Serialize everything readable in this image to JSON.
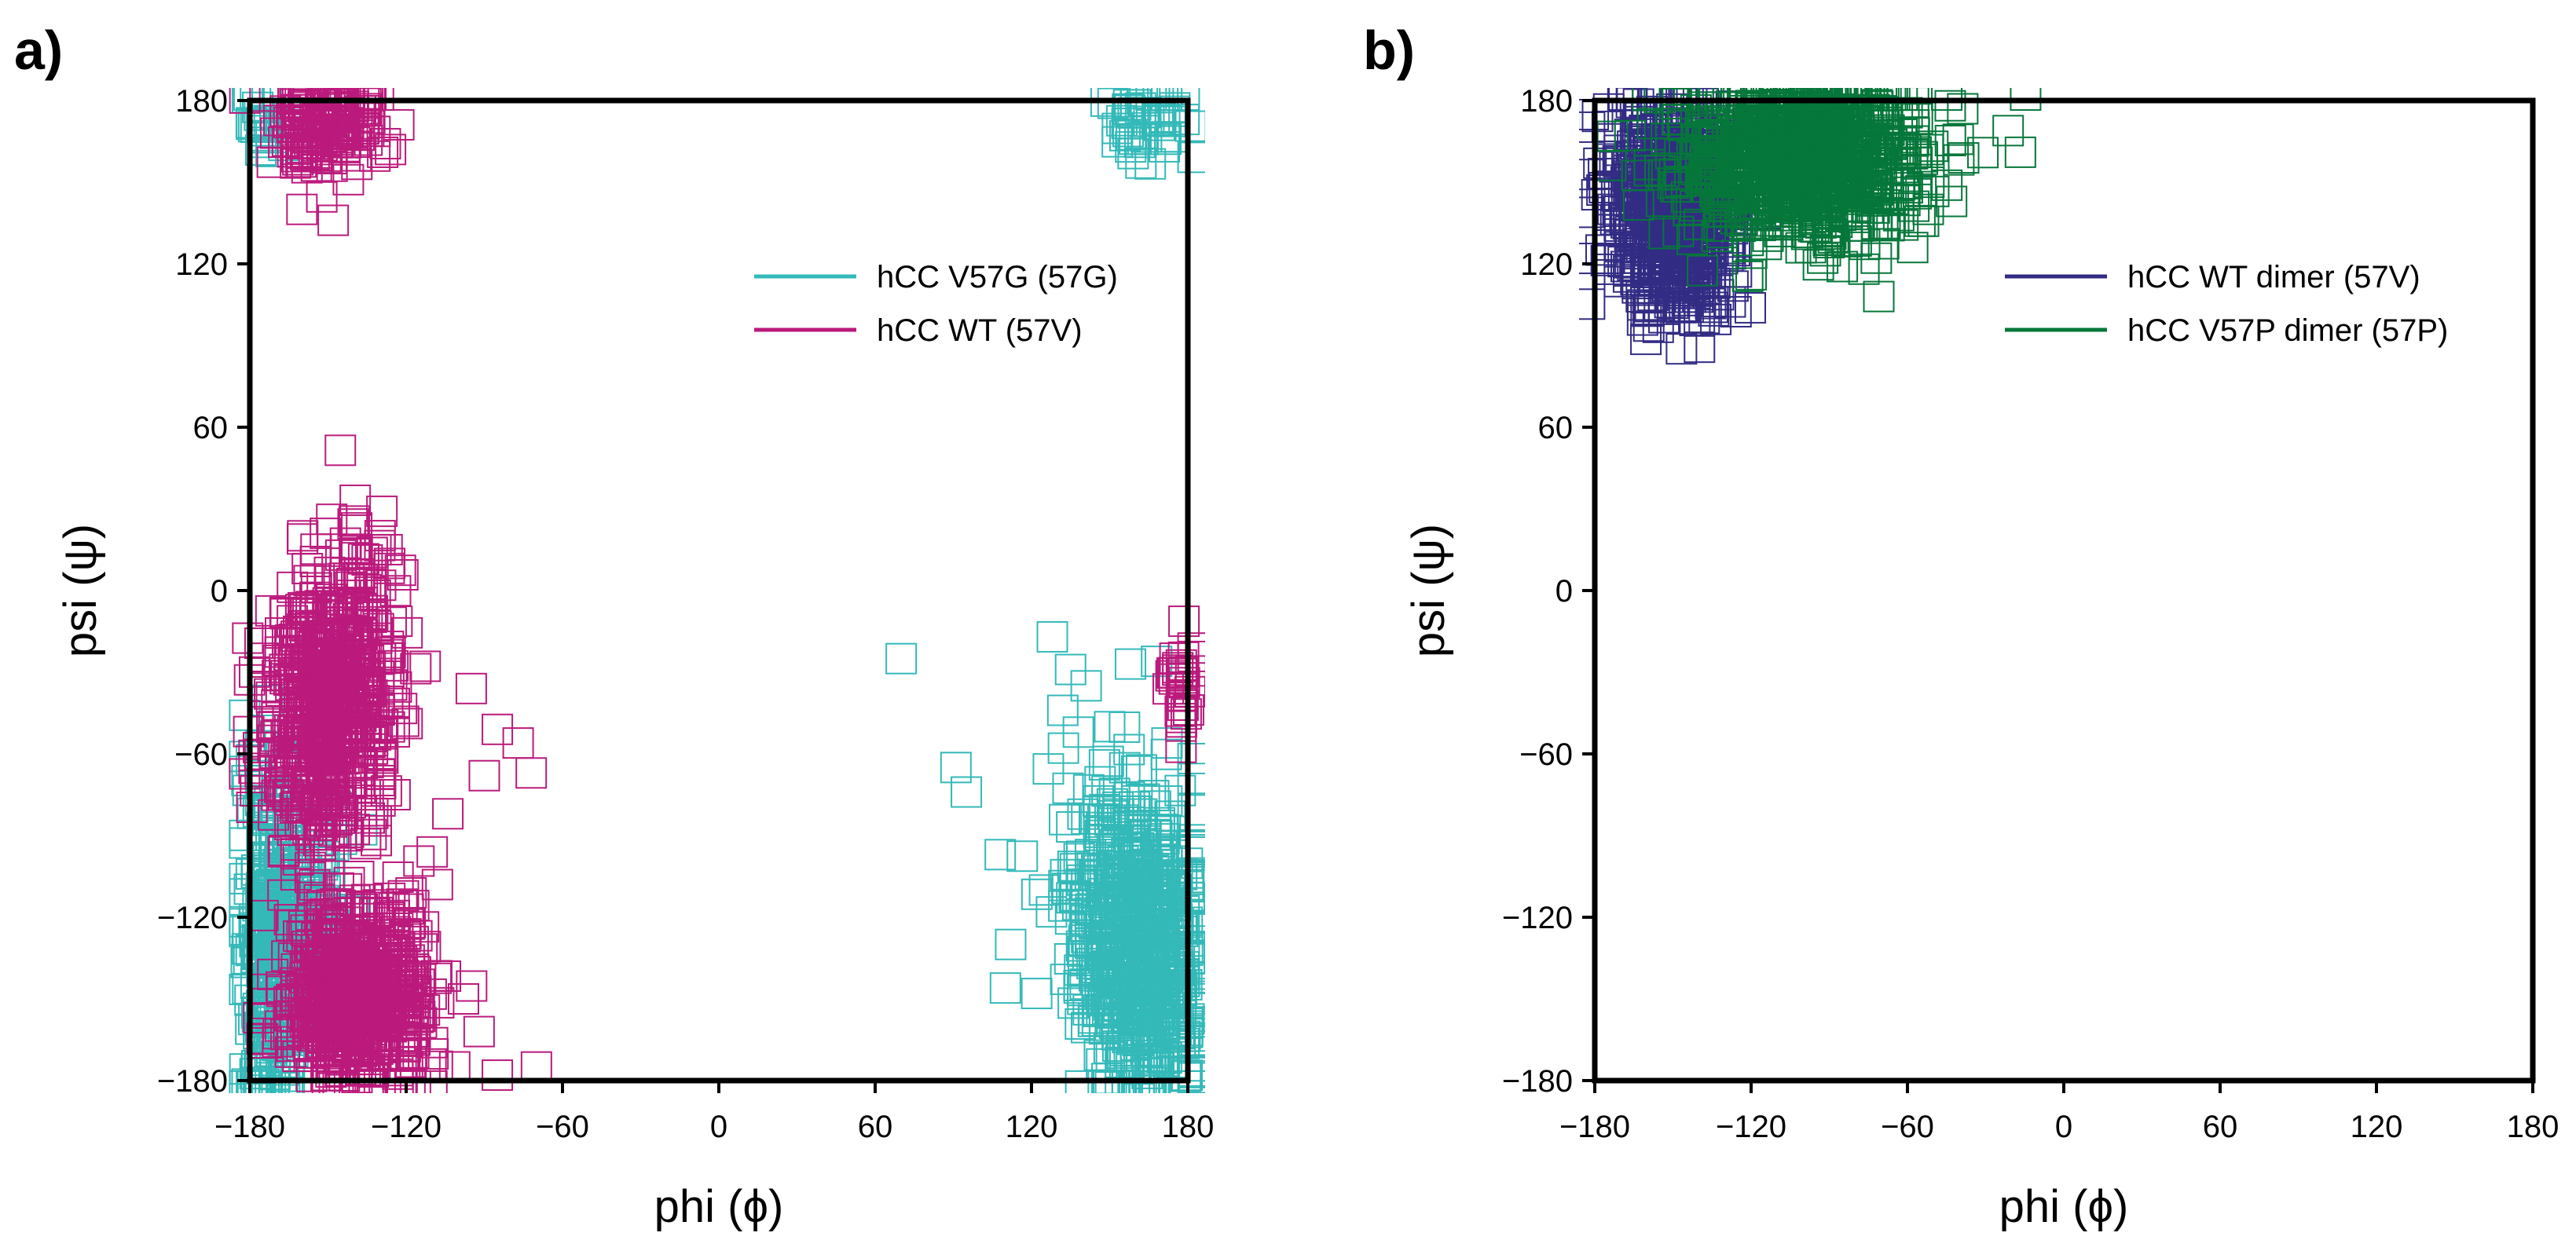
{
  "chart_data": [
    {
      "type": "scatter",
      "panel_label": "a)",
      "xlabel": "phi (ϕ)",
      "ylabel": "psi (ψ)",
      "xlim": [
        -180,
        180
      ],
      "ylim": [
        -180,
        180
      ],
      "xticks": [
        "−180",
        "−120",
        "−60",
        "0",
        "60",
        "120",
        "180"
      ],
      "yticks": [
        "−180",
        "−120",
        "−60",
        "0",
        "60",
        "120",
        "180"
      ],
      "grid": false,
      "legend_position": "top-right",
      "series": [
        {
          "name": "hCC V57G (57G)",
          "color": "#34b9b9",
          "marker": "open-square",
          "clusters": [
            {
              "center": [
                -172,
                -130
              ],
              "spread": [
                5,
                30
              ],
              "count": 260
            },
            {
              "center": [
                -160,
                -118
              ],
              "spread": [
                10,
                22
              ],
              "count": 140
            },
            {
              "center": [
                163,
                -135
              ],
              "spread": [
                12,
                28
              ],
              "count": 620
            },
            {
              "center": [
                150,
                -100
              ],
              "spread": [
                12,
                18
              ],
              "count": 90
            },
            {
              "center": [
                165,
                172
              ],
              "spread": [
                8,
                6
              ],
              "count": 45
            },
            {
              "center": [
                -175,
                172
              ],
              "spread": [
                4,
                6
              ],
              "count": 25
            }
          ],
          "points": [
            {
              "x": 70,
              "y": -25
            },
            {
              "x": 91,
              "y": -65
            },
            {
              "x": 95,
              "y": -74
            },
            {
              "x": 108,
              "y": -97
            },
            {
              "x": 112,
              "y": -130
            },
            {
              "x": 110,
              "y": -146
            },
            {
              "x": 122,
              "y": -148
            },
            {
              "x": 125,
              "y": -110
            },
            {
              "x": 128,
              "y": -17
            },
            {
              "x": 132,
              "y": -44
            },
            {
              "x": 135,
              "y": -29
            },
            {
              "x": 138,
              "y": -52
            },
            {
              "x": 141,
              "y": -35
            },
            {
              "x": 148,
              "y": -64
            },
            {
              "x": 150,
              "y": -50
            },
            {
              "x": 158,
              "y": -27
            },
            {
              "x": 168,
              "y": -26
            },
            {
              "x": 172,
              "y": -56
            },
            {
              "x": 162,
              "y": 157
            },
            {
              "x": 171,
              "y": 163
            }
          ]
        },
        {
          "name": "hCC WT (57V)",
          "color": "#bb1a7c",
          "marker": "open-square",
          "clusters": [
            {
              "center": [
                -148,
                -40
              ],
              "spread": [
                12,
                26
              ],
              "count": 650,
              "tilt": 0.55
            },
            {
              "center": [
                -140,
                -148
              ],
              "spread": [
                14,
                16
              ],
              "count": 650
            },
            {
              "center": [
                -150,
                170
              ],
              "spread": [
                10,
                8
              ],
              "count": 170
            },
            {
              "center": [
                177,
                -32
              ],
              "spread": [
                3,
                10
              ],
              "count": 30
            }
          ],
          "points": [
            {
              "x": -133,
              "y": 14
            },
            {
              "x": -95,
              "y": -36
            },
            {
              "x": -85,
              "y": -51
            },
            {
              "x": -77,
              "y": -56
            },
            {
              "x": -72,
              "y": -67
            },
            {
              "x": -90,
              "y": -68
            },
            {
              "x": -70,
              "y": -175
            },
            {
              "x": -85,
              "y": -178
            },
            {
              "x": -92,
              "y": -162
            },
            {
              "x": -98,
              "y": -150
            },
            {
              "x": -104,
              "y": -82
            },
            {
              "x": -110,
              "y": -96
            },
            {
              "x": -108,
              "y": -108
            },
            {
              "x": -160,
              "y": 140
            },
            {
              "x": -148,
              "y": 136
            },
            {
              "x": -126,
              "y": 162
            }
          ]
        }
      ]
    },
    {
      "type": "scatter",
      "panel_label": "b)",
      "xlabel": "phi (ϕ)",
      "ylabel": "psi (ψ)",
      "xlim": [
        -180,
        180
      ],
      "ylim": [
        -180,
        180
      ],
      "xticks": [
        "−180",
        "−120",
        "−60",
        "0",
        "60",
        "120",
        "180"
      ],
      "yticks": [
        "−180",
        "−120",
        "−60",
        "0",
        "60",
        "120",
        "180"
      ],
      "grid": false,
      "legend_position": "top-right",
      "series": [
        {
          "name": "hCC WT dimer (57V)",
          "color": "#322c84",
          "marker": "open-square",
          "clusters": [
            {
              "center": [
                -150,
                142
              ],
              "spread": [
                12,
                18
              ],
              "count": 700
            }
          ],
          "points": [
            {
              "x": -175,
              "y": 118
            },
            {
              "x": -138,
              "y": 100
            },
            {
              "x": -128,
              "y": 106
            },
            {
              "x": -158,
              "y": 176
            }
          ]
        },
        {
          "name": "hCC V57P dimer (57P)",
          "color": "#06773a",
          "marker": "open-square",
          "clusters": [
            {
              "center": [
                -100,
                158
              ],
              "spread": [
                24,
                14
              ],
              "count": 900
            }
          ],
          "points": [
            {
              "x": -71,
              "y": 108
            },
            {
              "x": -85,
              "y": 119
            },
            {
              "x": -120,
              "y": 116
            },
            {
              "x": -58,
              "y": 126
            },
            {
              "x": -52,
              "y": 140
            }
          ]
        }
      ]
    }
  ]
}
